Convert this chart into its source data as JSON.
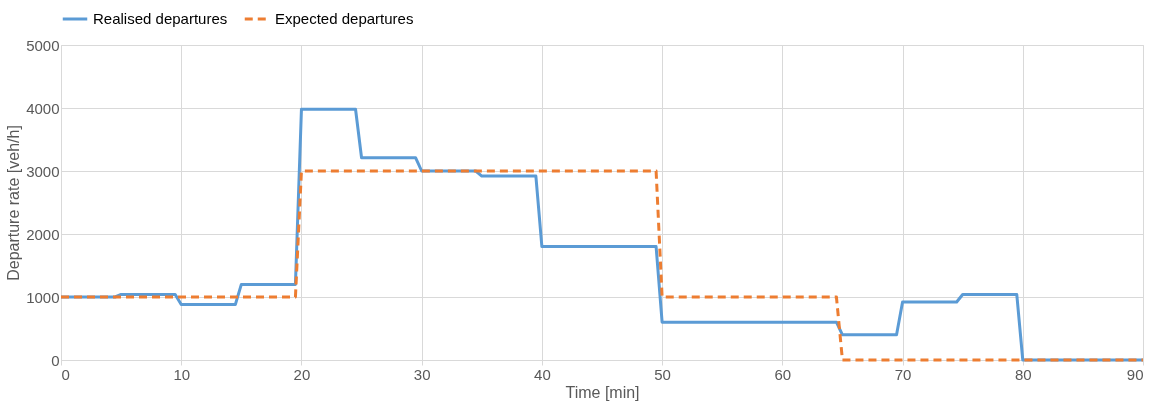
{
  "chart_data": {
    "type": "line",
    "xlabel": "Time [min]",
    "ylabel": "Departure rate [veh/h]",
    "xlim": [
      0,
      90
    ],
    "xticks": [
      0,
      10,
      20,
      30,
      40,
      50,
      60,
      70,
      80,
      90
    ],
    "ylim": [
      0,
      5000
    ],
    "yticks": [
      0,
      1000,
      2000,
      3000,
      4000,
      5000
    ],
    "grid": true,
    "legend": "top",
    "marker": "none",
    "series": [
      {
        "name": "Realised departures",
        "color": "#5b9bd5",
        "line_style": "solid",
        "x": [
          0,
          4.5,
          5,
          9.5,
          10,
          14.5,
          15,
          19.5,
          20,
          24.5,
          25,
          29.5,
          30,
          34.5,
          35,
          39.5,
          40,
          49.5,
          50,
          64.5,
          65,
          69.5,
          70,
          74.5,
          75,
          79.5,
          80,
          90
        ],
        "values": [
          1000,
          1000,
          1040,
          1040,
          880,
          880,
          1200,
          1200,
          3980,
          3980,
          3210,
          3210,
          3000,
          3000,
          2920,
          2920,
          1800,
          1800,
          600,
          600,
          400,
          400,
          920,
          920,
          1040,
          1040,
          0,
          0
        ]
      },
      {
        "name": "Expected departures",
        "color": "#ed7d31",
        "line_style": "dashed",
        "x": [
          0,
          19.5,
          20,
          49.5,
          50,
          64.5,
          65,
          90
        ],
        "values": [
          1000,
          1000,
          3000,
          3000,
          1000,
          1000,
          0,
          0
        ]
      }
    ]
  }
}
